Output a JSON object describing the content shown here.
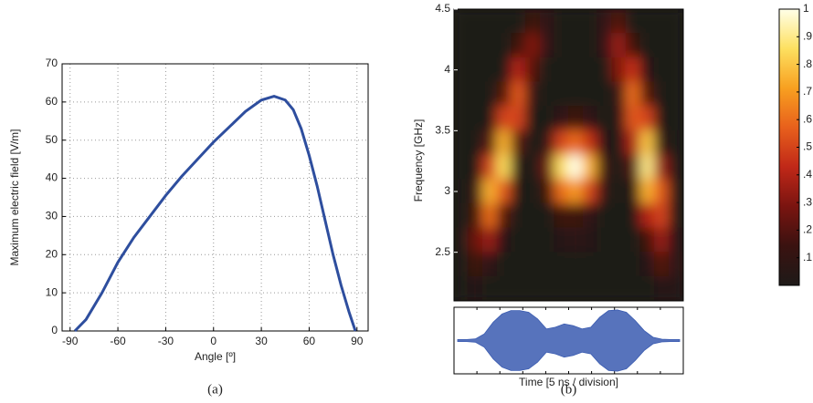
{
  "chart_data": [
    {
      "type": "line",
      "caption": "(a)",
      "xlabel": "Angle [º]",
      "ylabel": "Maximum electric field [V/m]",
      "x": [
        -87,
        -80,
        -70,
        -60,
        -50,
        -40,
        -30,
        -20,
        -10,
        0,
        10,
        20,
        30,
        38,
        45,
        50,
        55,
        60,
        65,
        70,
        75,
        80,
        85,
        89
      ],
      "series": [
        {
          "color": "#2e4e9e",
          "values": [
            0,
            3,
            10,
            18,
            24.5,
            30,
            35.5,
            40.5,
            45,
            49.5,
            53.5,
            57.5,
            60.5,
            61.5,
            60.5,
            58,
            53,
            46,
            38,
            29,
            20,
            12,
            5,
            0
          ]
        }
      ],
      "xlim": [
        -95,
        97
      ],
      "ylim": [
        0,
        70
      ],
      "xticks": [
        -90,
        -60,
        -30,
        0,
        30,
        60,
        90
      ],
      "yticks": [
        0,
        10,
        20,
        30,
        40,
        50,
        60,
        70
      ],
      "grid": true
    },
    {
      "type": "heatmap",
      "caption": "(b)",
      "xlabel": "Time [5 ns / division]",
      "ylabel": "Frequency [GHz]",
      "ylim": [
        2.1,
        4.5
      ],
      "yticks": [
        2.5,
        3,
        3.5,
        4,
        4.5
      ],
      "z": [
        [
          0,
          0,
          0,
          0,
          0,
          0.15,
          0.1,
          0,
          0,
          0,
          0.1,
          0.2,
          0,
          0,
          0,
          0
        ],
        [
          0,
          0,
          0,
          0,
          0.15,
          0.3,
          0.1,
          0,
          0,
          0,
          0.1,
          0.35,
          0.15,
          0,
          0,
          0
        ],
        [
          0,
          0,
          0,
          0,
          0.4,
          0.2,
          0,
          0,
          0,
          0,
          0,
          0.3,
          0.45,
          0.05,
          0,
          0
        ],
        [
          0,
          0,
          0,
          0.2,
          0.55,
          0.1,
          0,
          0,
          0,
          0,
          0,
          0.1,
          0.6,
          0.2,
          0,
          0
        ],
        [
          0,
          0,
          0,
          0.5,
          0.5,
          0,
          0,
          0.1,
          0.15,
          0.1,
          0,
          0.05,
          0.55,
          0.5,
          0,
          0
        ],
        [
          0,
          0,
          0.2,
          0.75,
          0.2,
          0,
          0.1,
          0.5,
          0.6,
          0.45,
          0.05,
          0,
          0.4,
          0.8,
          0.1,
          0
        ],
        [
          0,
          0,
          0.5,
          0.85,
          0.05,
          0,
          0.25,
          0.85,
          1,
          0.75,
          0.15,
          0,
          0.2,
          0.9,
          0.35,
          0
        ],
        [
          0,
          0.1,
          0.75,
          0.55,
          0,
          0,
          0.15,
          0.6,
          0.7,
          0.5,
          0.1,
          0,
          0.05,
          0.75,
          0.55,
          0
        ],
        [
          0,
          0.15,
          0.6,
          0.2,
          0,
          0,
          0,
          0.15,
          0.15,
          0.1,
          0,
          0,
          0,
          0.4,
          0.5,
          0
        ],
        [
          0,
          0.25,
          0.35,
          0.05,
          0,
          0,
          0,
          0.05,
          0.08,
          0.05,
          0,
          0,
          0,
          0.15,
          0.35,
          0.05
        ],
        [
          0,
          0.15,
          0.1,
          0,
          0,
          0,
          0,
          0,
          0,
          0,
          0,
          0,
          0,
          0.05,
          0.2,
          0.1
        ],
        [
          0,
          0.05,
          0,
          0,
          0,
          0,
          0,
          0,
          0,
          0,
          0,
          0,
          0,
          0,
          0.05,
          0.05
        ]
      ],
      "clim": [
        0,
        1
      ],
      "colormap": [
        "#1e1a18",
        "#3a1210",
        "#7a1410",
        "#c02818",
        "#e8601c",
        "#f8a020",
        "#fde060",
        "#ffffe8"
      ],
      "cticks": [
        {
          "value": 0.1,
          "label": ".1"
        },
        {
          "value": 0.2,
          "label": ".2"
        },
        {
          "value": 0.3,
          "label": ".3"
        },
        {
          "value": 0.4,
          "label": ".4"
        },
        {
          "value": 0.5,
          "label": ".5"
        },
        {
          "value": 0.6,
          "label": ".6"
        },
        {
          "value": 0.7,
          "label": ".7"
        },
        {
          "value": 0.8,
          "label": ".8"
        },
        {
          "value": 0.9,
          "label": ".9"
        },
        1
      ],
      "waveform": {
        "color": "#3a5bb0",
        "ylim": [
          -1,
          1
        ],
        "values": [
          0.03,
          0.03,
          0.05,
          0.2,
          0.55,
          0.8,
          0.9,
          0.9,
          0.85,
          0.65,
          0.35,
          0.4,
          0.5,
          0.45,
          0.35,
          0.4,
          0.7,
          0.9,
          0.92,
          0.85,
          0.6,
          0.3,
          0.1,
          0.04,
          0.03,
          0.03
        ]
      }
    }
  ]
}
